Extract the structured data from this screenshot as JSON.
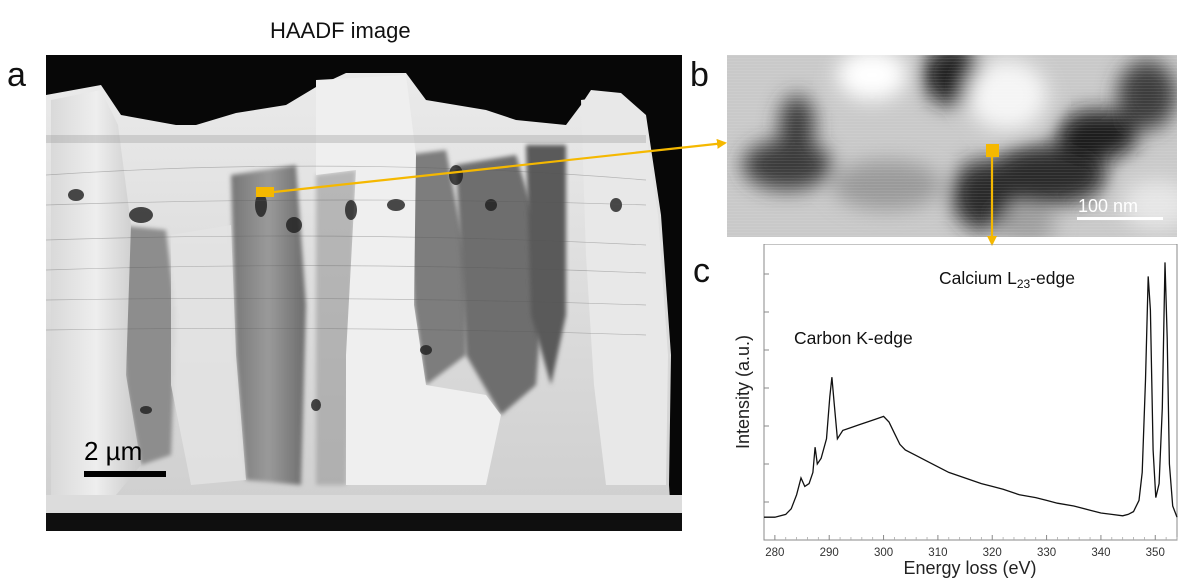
{
  "figure": {
    "panel_a": {
      "letter": "a",
      "title": "HAADF image",
      "scale_bar_label": "2 µm"
    },
    "panel_b": {
      "letter": "b",
      "scale_bar_label": "100 nm"
    },
    "panel_c": {
      "letter": "c"
    },
    "marker_color": "#f5b800"
  },
  "chart_data": {
    "type": "line",
    "xlabel": "Energy loss (eV)",
    "ylabel": "Intensity (a.u.)",
    "xlim": [
      278,
      354
    ],
    "x_ticks": [
      280,
      290,
      300,
      310,
      320,
      330,
      340,
      350
    ],
    "y_ticks_labeled": false,
    "grid": false,
    "annotations": [
      {
        "text": "Carbon K-edge",
        "x": 291
      },
      {
        "text_main": "Calcium L",
        "text_sub": "23",
        "text_tail": "-edge",
        "x": 352
      }
    ],
    "series": [
      {
        "x": [
          278,
          280,
          282,
          283,
          284,
          284.8,
          285.5,
          286.3,
          287.0,
          287.4,
          287.8,
          288.5,
          289.5,
          290.1,
          290.5,
          290.9,
          291.5,
          292.5,
          294,
          295.5,
          297,
          298.5,
          300,
          301,
          302,
          303,
          304,
          306,
          308,
          310,
          312,
          315,
          318,
          320,
          322,
          325,
          328,
          330,
          332,
          335,
          338,
          340,
          342,
          344,
          345,
          346,
          347,
          347.6,
          348.2,
          348.7,
          349.1,
          349.6,
          350.1,
          350.7,
          351.3,
          351.8,
          352.2,
          352.6,
          353.2,
          354
        ],
        "y": [
          0.06,
          0.06,
          0.07,
          0.09,
          0.14,
          0.2,
          0.17,
          0.18,
          0.22,
          0.31,
          0.25,
          0.27,
          0.34,
          0.49,
          0.56,
          0.47,
          0.34,
          0.37,
          0.38,
          0.39,
          0.4,
          0.41,
          0.42,
          0.4,
          0.36,
          0.32,
          0.3,
          0.28,
          0.26,
          0.24,
          0.22,
          0.2,
          0.18,
          0.17,
          0.16,
          0.14,
          0.13,
          0.12,
          0.11,
          0.1,
          0.085,
          0.075,
          0.07,
          0.065,
          0.07,
          0.08,
          0.12,
          0.22,
          0.55,
          0.92,
          0.8,
          0.3,
          0.13,
          0.18,
          0.45,
          0.97,
          0.7,
          0.25,
          0.1,
          0.06
        ]
      }
    ]
  }
}
